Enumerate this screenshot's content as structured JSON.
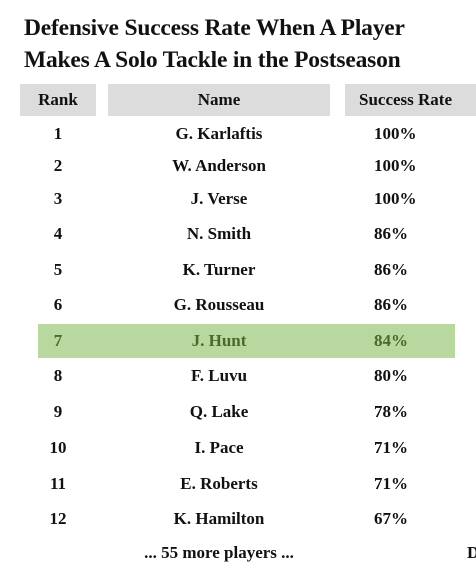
{
  "title_line1": "Defensive Success Rate When A Player",
  "title_line2": "Makes A Solo Tackle in the Postseason",
  "columns": {
    "rank": "Rank",
    "name": "Name",
    "rate": "Success Rate"
  },
  "rows": [
    {
      "rank": "1",
      "name": "G. Karlaftis",
      "rate": "100%"
    },
    {
      "rank": "2",
      "name": "W. Anderson",
      "rate": "100%"
    },
    {
      "rank": "3",
      "name": "J. Verse",
      "rate": "100%"
    },
    {
      "rank": "4",
      "name": "N. Smith",
      "rate": "86%"
    },
    {
      "rank": "5",
      "name": "K. Turner",
      "rate": "86%"
    },
    {
      "rank": "6",
      "name": "G. Rousseau",
      "rate": "86%"
    },
    {
      "rank": "7",
      "name": "J. Hunt",
      "rate": "84%"
    },
    {
      "rank": "8",
      "name": "F. Luvu",
      "rate": "80%"
    },
    {
      "rank": "9",
      "name": "Q. Lake",
      "rate": "78%"
    },
    {
      "rank": "10",
      "name": "I. Pace",
      "rate": "71%"
    },
    {
      "rank": "11",
      "name": "E. Roberts",
      "rate": "71%"
    },
    {
      "rank": "12",
      "name": "K. Hamilton",
      "rate": "67%"
    }
  ],
  "more_text": "... 55 more players ...",
  "edge_text": "D",
  "colors": {
    "header_bg": "#dcdcdc",
    "highlight_bg": "#b8d89f",
    "highlight_text": "#4a6a2c"
  }
}
